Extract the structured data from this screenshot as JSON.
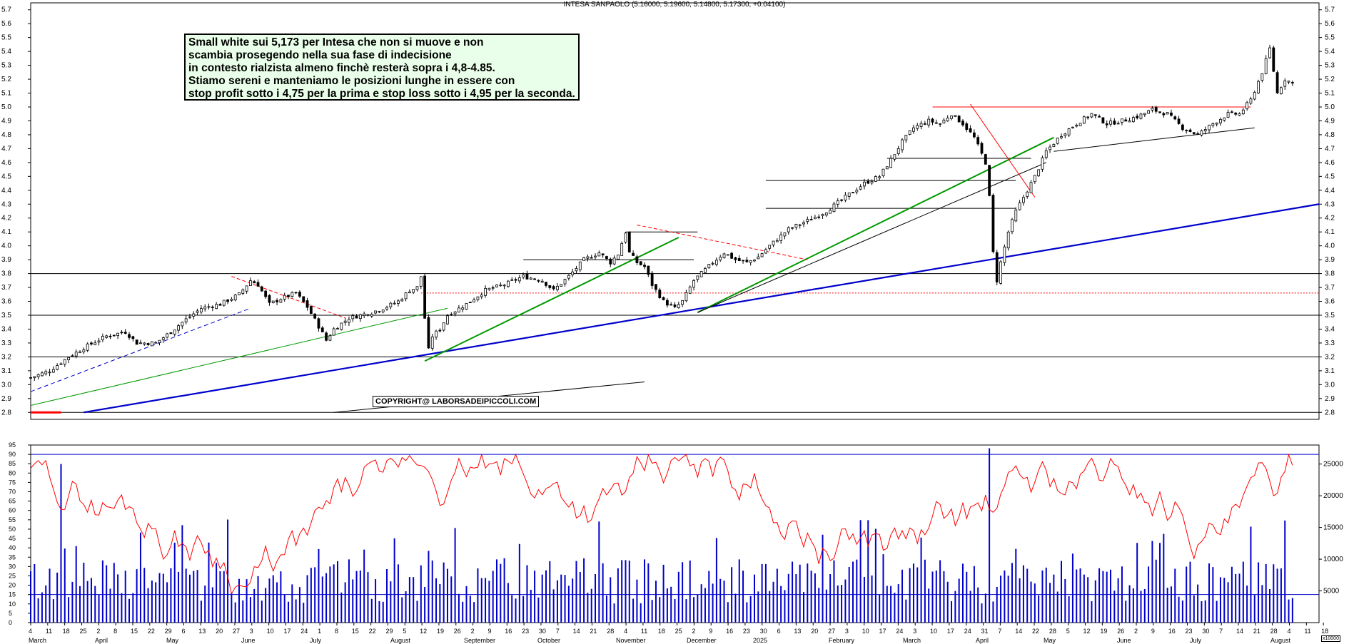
{
  "title": "INTESA SANPAOLO (5.16000, 5.19600, 5.14800, 5.17300, +0.04100)",
  "annotation": {
    "lines": [
      "Small white sui 5,173 per Intesa che non si muove e non",
      "scambia prosegendo nella sua fase di indecisione",
      "in contesto rialzista almeno finchè resterà sopra i 4,8-4.85.",
      "Stiamo sereni e manteniamo le posizioni lunghe in essere con",
      "stop profit sotto i 4,75 per la prima e stop loss sotto i 4,95 per la seconda."
    ]
  },
  "copyright": "COPYRIGHT@ LABORSADEIPICCOLI.COM",
  "volume_unit": "x10000",
  "colors": {
    "candle": "#000000",
    "blue_trend": "#0000cc",
    "green_trend": "#009900",
    "red_line": "#ff0000",
    "oscillator": "#ff0000",
    "volume": "#0000cc",
    "black_line": "#000000"
  },
  "chart_data": [
    {
      "type": "candlestick",
      "ylim": [
        2.75,
        5.75
      ],
      "y_ticks": [
        "2.8",
        "2.9",
        "3.0",
        "3.1",
        "3.2",
        "3.3",
        "3.4",
        "3.5",
        "3.6",
        "3.7",
        "3.8",
        "3.9",
        "4.0",
        "4.1",
        "4.2",
        "4.3",
        "4.4",
        "4.5",
        "4.6",
        "4.7",
        "4.8",
        "4.9",
        "5.0",
        "5.1",
        "5.2",
        "5.3",
        "5.4",
        "5.5",
        "5.6",
        "5.7"
      ],
      "horizontal_levels": [
        2.8,
        3.2,
        3.5,
        3.8
      ],
      "red_levels": [
        3.66,
        5.0
      ],
      "resistance_levels": [
        3.9,
        4.1,
        4.27,
        4.47,
        4.63
      ],
      "close_path": [
        [
          0,
          3.05
        ],
        [
          5,
          3.1
        ],
        [
          10,
          3.2
        ],
        [
          15,
          3.28
        ],
        [
          20,
          3.35
        ],
        [
          25,
          3.38
        ],
        [
          28,
          3.3
        ],
        [
          33,
          3.3
        ],
        [
          37,
          3.38
        ],
        [
          40,
          3.45
        ],
        [
          45,
          3.55
        ],
        [
          50,
          3.58
        ],
        [
          55,
          3.65
        ],
        [
          58,
          3.75
        ],
        [
          60,
          3.72
        ],
        [
          63,
          3.58
        ],
        [
          66,
          3.62
        ],
        [
          70,
          3.66
        ],
        [
          73,
          3.56
        ],
        [
          76,
          3.42
        ],
        [
          78,
          3.32
        ],
        [
          80,
          3.4
        ],
        [
          84,
          3.48
        ],
        [
          87,
          3.5
        ],
        [
          90,
          3.52
        ],
        [
          93,
          3.55
        ],
        [
          97,
          3.6
        ],
        [
          100,
          3.68
        ],
        [
          102,
          3.7
        ],
        [
          103,
          3.78
        ],
        [
          104,
          3.48
        ],
        [
          105,
          3.25
        ],
        [
          106,
          3.35
        ],
        [
          108,
          3.4
        ],
        [
          110,
          3.5
        ],
        [
          115,
          3.58
        ],
        [
          120,
          3.68
        ],
        [
          125,
          3.72
        ],
        [
          130,
          3.78
        ],
        [
          135,
          3.75
        ],
        [
          138,
          3.68
        ],
        [
          142,
          3.78
        ],
        [
          146,
          3.9
        ],
        [
          150,
          3.95
        ],
        [
          153,
          3.88
        ],
        [
          155,
          3.94
        ],
        [
          157,
          4.1
        ],
        [
          158,
          3.95
        ],
        [
          160,
          3.88
        ],
        [
          162,
          3.85
        ],
        [
          164,
          3.72
        ],
        [
          167,
          3.6
        ],
        [
          170,
          3.55
        ],
        [
          172,
          3.6
        ],
        [
          175,
          3.75
        ],
        [
          180,
          3.88
        ],
        [
          183,
          3.95
        ],
        [
          186,
          3.9
        ],
        [
          189,
          3.88
        ],
        [
          192,
          3.92
        ],
        [
          195,
          4.0
        ],
        [
          200,
          4.12
        ],
        [
          205,
          4.18
        ],
        [
          210,
          4.25
        ],
        [
          215,
          4.35
        ],
        [
          220,
          4.45
        ],
        [
          224,
          4.5
        ],
        [
          227,
          4.62
        ],
        [
          230,
          4.75
        ],
        [
          233,
          4.85
        ],
        [
          237,
          4.9
        ],
        [
          240,
          4.88
        ],
        [
          243,
          4.95
        ],
        [
          246,
          4.88
        ],
        [
          249,
          4.78
        ],
        [
          252,
          4.6
        ],
        [
          253,
          4.35
        ],
        [
          254,
          3.95
        ],
        [
          255,
          3.75
        ],
        [
          256,
          3.88
        ],
        [
          258,
          4.1
        ],
        [
          260,
          4.25
        ],
        [
          262,
          4.35
        ],
        [
          265,
          4.5
        ],
        [
          268,
          4.68
        ],
        [
          272,
          4.8
        ],
        [
          276,
          4.88
        ],
        [
          280,
          4.95
        ],
        [
          284,
          4.88
        ],
        [
          288,
          4.9
        ],
        [
          292,
          4.93
        ],
        [
          296,
          4.98
        ],
        [
          300,
          4.95
        ],
        [
          304,
          4.85
        ],
        [
          308,
          4.8
        ],
        [
          312,
          4.88
        ],
        [
          316,
          4.95
        ],
        [
          319,
          4.95
        ],
        [
          322,
          5.05
        ],
        [
          325,
          5.25
        ],
        [
          327,
          5.42
        ],
        [
          329,
          5.1
        ],
        [
          331,
          5.2
        ],
        [
          333,
          5.17
        ]
      ]
    },
    {
      "type": "bar+line",
      "oscillator_ylim": [
        0,
        95
      ],
      "oscillator_ticks": [
        "0",
        "5",
        "10",
        "15",
        "20",
        "25",
        "30",
        "35",
        "40",
        "45",
        "50",
        "55",
        "60",
        "65",
        "70",
        "75",
        "80",
        "85",
        "90",
        "95"
      ],
      "volume_ticks": [
        [
          "5000",
          5000
        ],
        [
          "10000",
          10000
        ],
        [
          "15000",
          15000
        ],
        [
          "20000",
          20000
        ],
        [
          "25000",
          25000
        ]
      ],
      "volume_max": 28000,
      "oscillator_levels": [
        15,
        90
      ]
    }
  ],
  "x_axis": {
    "months": [
      "March",
      "April",
      "May",
      "June",
      "July",
      "August",
      "September",
      "October",
      "November",
      "December",
      "2025",
      "February",
      "March",
      "April",
      "May",
      "June",
      "July",
      "August"
    ],
    "days": [
      "4",
      "11",
      "18",
      "25",
      "2",
      "8",
      "15",
      "22",
      "29",
      "6",
      "13",
      "20",
      "27",
      "3",
      "10",
      "17",
      "24",
      "1",
      "8",
      "15",
      "22",
      "29",
      "5",
      "12",
      "19",
      "26",
      "2",
      "9",
      "16",
      "23",
      "30",
      "7",
      "14",
      "21",
      "28",
      "4",
      "11",
      "18",
      "25",
      "2",
      "9",
      "16",
      "23",
      "30",
      "6",
      "13",
      "20",
      "27",
      "3",
      "10",
      "17",
      "24",
      "3",
      "10",
      "17",
      "24",
      "31",
      "7",
      "14",
      "22",
      "28",
      "5",
      "12",
      "19",
      "26",
      "2",
      "9",
      "16",
      "23",
      "30",
      "7",
      "14",
      "21",
      "28",
      "4",
      "11",
      "18"
    ]
  }
}
